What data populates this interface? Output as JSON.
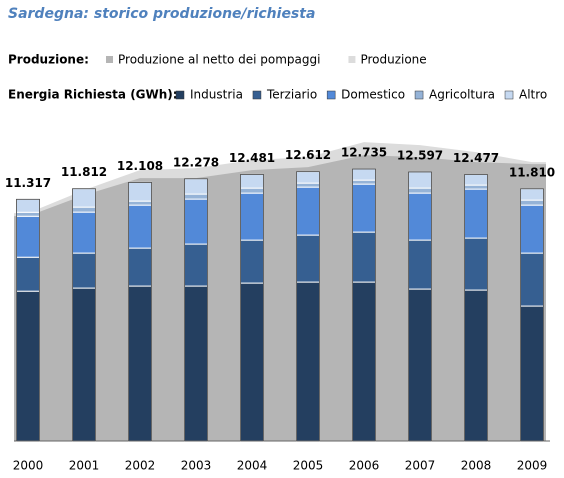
{
  "chart_data": {
    "type": "bar",
    "title": "Sardegna: storico produzione/richiesta",
    "production_legend_title": "Produzione:",
    "demand_legend_title": "Energia Richiesta  (GWh):",
    "categories": [
      "2000",
      "2001",
      "2002",
      "2003",
      "2004",
      "2005",
      "2006",
      "2007",
      "2008",
      "2009"
    ],
    "ylim": [
      0,
      14000
    ],
    "series": [
      {
        "name": "Produzione al netto dei pompaggi",
        "type": "area",
        "color": "#b5b5b5",
        "values": [
          10530,
          11513,
          12308,
          12308,
          12683,
          12823,
          13385,
          13291,
          13057,
          12964
        ]
      },
      {
        "name": "Produzione",
        "type": "area",
        "color": "#dcdcdc",
        "values": [
          10670,
          11747,
          12683,
          12776,
          13151,
          13291,
          13993,
          13853,
          13525,
          13057
        ]
      },
      {
        "name": "Industria",
        "type": "bar",
        "color": "#243f60",
        "values": [
          7015,
          7160,
          7254,
          7254,
          7394,
          7441,
          7441,
          7114,
          7067,
          6318
        ]
      },
      {
        "name": "Terziario",
        "type": "bar",
        "color": "#365f91",
        "values": [
          1590,
          1638,
          1778,
          1966,
          2012,
          2200,
          2340,
          2293,
          2434,
          2480
        ]
      },
      {
        "name": "Domestico",
        "type": "bar",
        "color": "#5289d8",
        "values": [
          1918,
          1918,
          2012,
          2106,
          2200,
          2246,
          2246,
          2200,
          2293,
          2246
        ]
      },
      {
        "name": "Agricoltura",
        "type": "bar",
        "color": "#95b3d7",
        "values": [
          186,
          234,
          187,
          234,
          234,
          187,
          187,
          234,
          187,
          234
        ]
      },
      {
        "name": "Altro",
        "type": "bar",
        "color": "#c6d9f1",
        "values": [
          608,
          862,
          877,
          718,
          641,
          538,
          521,
          756,
          496,
          532
        ]
      }
    ],
    "total_values": [
      11317,
      11812,
      12108,
      12278,
      12481,
      12612,
      12735,
      12597,
      12477,
      11810
    ],
    "total_labels": [
      "11.317",
      "11.812",
      "12.108",
      "12.278",
      "12.481",
      "12.612",
      "12.735",
      "12.597",
      "12.477",
      "11.810"
    ]
  }
}
